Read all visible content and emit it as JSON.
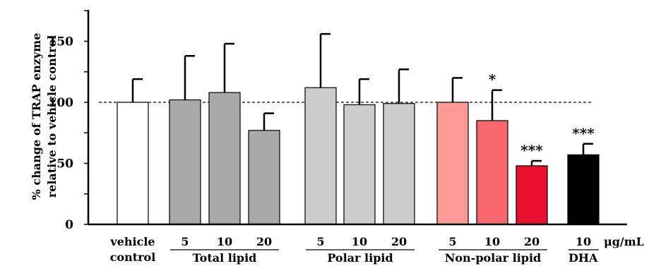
{
  "chart_data": {
    "type": "bar",
    "ylabel": "% change of TRAP enzyme relative to vehicle control",
    "ylabel_lines": [
      "% change of TRAP enzyme",
      "relative to vehicle control"
    ],
    "ylim": [
      0,
      175
    ],
    "yticks": [
      0,
      50,
      100,
      150
    ],
    "reference_line": 100,
    "unit": "μg/mL",
    "bars": [
      {
        "group": "vehicle control",
        "label": "",
        "value": 100,
        "error": 19,
        "color": "#ffffff",
        "significance": ""
      },
      {
        "group": "Total lipid",
        "label": "5",
        "value": 102,
        "error": 36,
        "color": "#a9a9a9",
        "significance": ""
      },
      {
        "group": "Total lipid",
        "label": "10",
        "value": 108,
        "error": 40,
        "color": "#a9a9a9",
        "significance": ""
      },
      {
        "group": "Total lipid",
        "label": "20",
        "value": 77,
        "error": 14,
        "color": "#a9a9a9",
        "significance": ""
      },
      {
        "group": "Polar lipid",
        "label": "5",
        "value": 112,
        "error": 44,
        "color": "#cccccc",
        "significance": ""
      },
      {
        "group": "Polar lipid",
        "label": "10",
        "value": 98,
        "error": 21,
        "color": "#cccccc",
        "significance": ""
      },
      {
        "group": "Polar lipid",
        "label": "20",
        "value": 99,
        "error": 28,
        "color": "#cccccc",
        "significance": ""
      },
      {
        "group": "Non-polar lipid",
        "label": "5",
        "value": 100,
        "error": 20,
        "color": "#ff9a96",
        "significance": ""
      },
      {
        "group": "Non-polar lipid",
        "label": "10",
        "value": 85,
        "error": 25,
        "color": "#f7676d",
        "significance": "*"
      },
      {
        "group": "Non-polar lipid",
        "label": "20",
        "value": 48,
        "error": 4,
        "color": "#e8112d",
        "significance": "***"
      },
      {
        "group": "DHA",
        "label": "10",
        "value": 57,
        "error": 9,
        "color": "#000000",
        "significance": "***"
      }
    ],
    "groups": [
      {
        "name": "vehicle control",
        "lines": [
          "vehicle",
          "control"
        ],
        "underline": false
      },
      {
        "name": "Total lipid",
        "lines": [
          "Total lipid"
        ],
        "underline": true
      },
      {
        "name": "Polar lipid",
        "lines": [
          "Polar lipid"
        ],
        "underline": true
      },
      {
        "name": "Non-polar lipid",
        "lines": [
          "Non-polar lipid"
        ],
        "underline": true
      },
      {
        "name": "DHA",
        "lines": [
          "DHA"
        ],
        "underline": true
      }
    ]
  }
}
